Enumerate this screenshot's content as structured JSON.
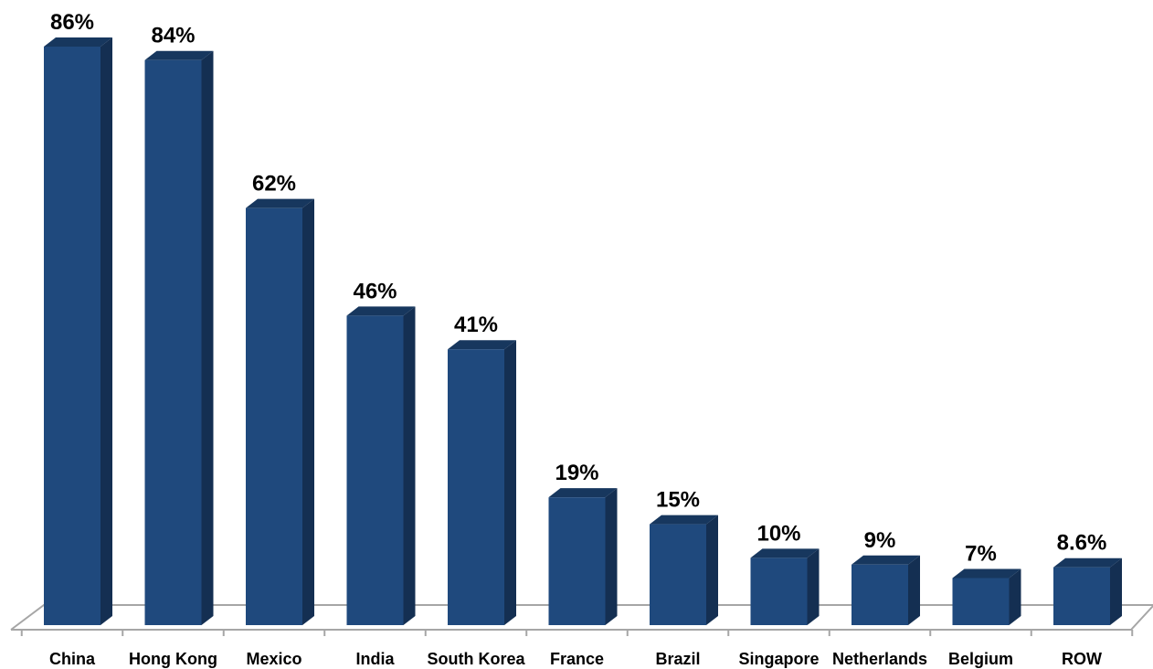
{
  "chart_data": {
    "type": "bar",
    "style": "3d-column",
    "categories": [
      "China",
      "Hong Kong",
      "Mexico",
      "India",
      "South Korea",
      "France",
      "Brazil",
      "Singapore",
      "Netherlands",
      "Belgium",
      "ROW"
    ],
    "values": [
      86,
      84,
      62,
      46,
      41,
      19,
      15,
      10,
      9,
      7,
      8.6
    ],
    "data_labels": [
      "86%",
      "84%",
      "62%",
      "46%",
      "41%",
      "19%",
      "15%",
      "10%",
      "9%",
      "7%",
      "8.6%"
    ],
    "title": "",
    "xlabel": "",
    "ylabel": "",
    "ylim": [
      0,
      86
    ],
    "grid": false,
    "legend": "none",
    "colors": {
      "bar_front": "#1F497D",
      "bar_side": "#142F52",
      "bar_top": "#17375E",
      "floor_line": "#A6A6A6"
    }
  }
}
